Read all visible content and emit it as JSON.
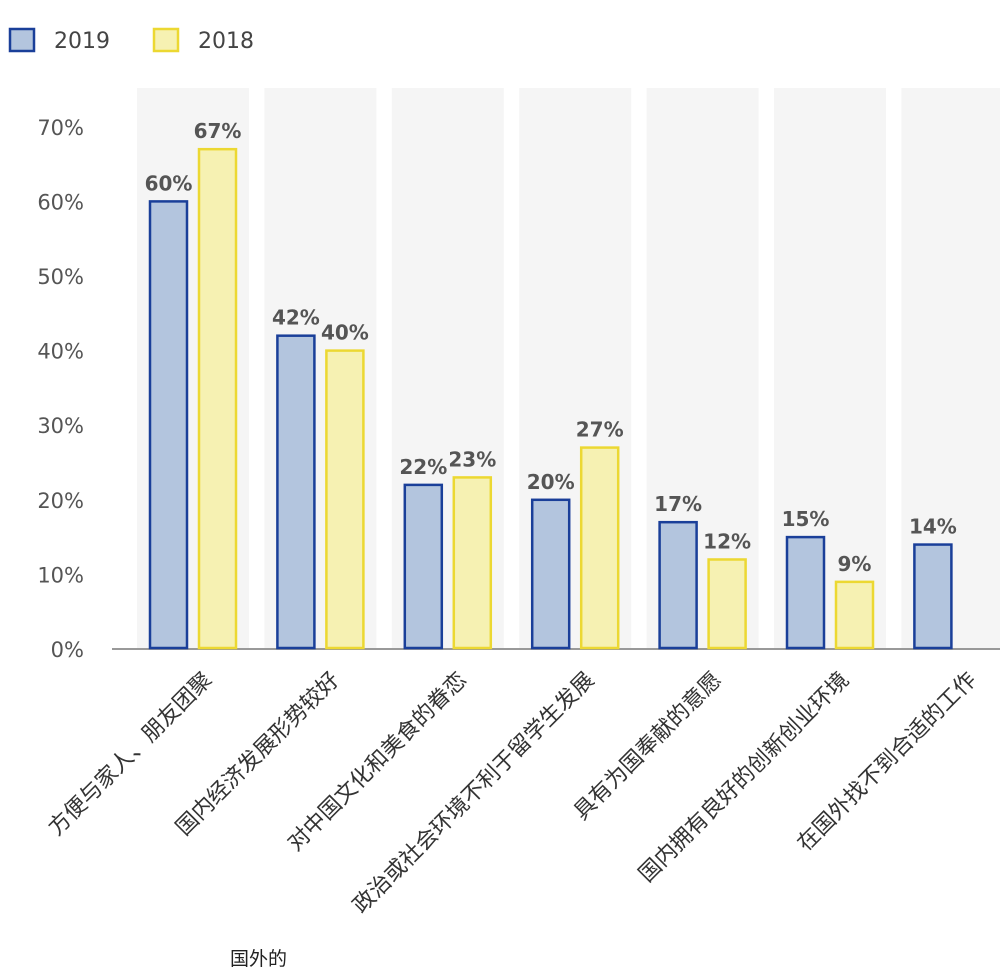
{
  "chart_data": {
    "type": "bar",
    "categories": [
      "方便与家人、朋友团聚",
      "国内经济发展形势较好",
      "对中国文化和美食的眷恋",
      "政治或社会环境不利于留学生发展",
      "具有为国奉献的意愿",
      "国内拥有良好的创新创业环境",
      "在国外找不到合适的工作"
    ],
    "series": [
      {
        "name": "2019",
        "values": [
          60,
          42,
          22,
          20,
          17,
          15,
          14
        ],
        "labels": [
          "60%",
          "42%",
          "22%",
          "20%",
          "17%",
          "15%",
          "14%"
        ]
      },
      {
        "name": "2018",
        "values": [
          67,
          40,
          23,
          27,
          12,
          9,
          null
        ],
        "labels": [
          "67%",
          "40%",
          "23%",
          "27%",
          "12%",
          "9%",
          ""
        ]
      }
    ],
    "ylim": [
      0,
      70
    ],
    "yticks": [
      0,
      10,
      20,
      30,
      40,
      50,
      60,
      70
    ],
    "ytick_labels": [
      "0%",
      "10%",
      "20%",
      "30%",
      "40%",
      "50%",
      "60%",
      "70%"
    ],
    "legend_position": "top-left",
    "grid": false,
    "colors": {
      "s2019_fill": "#b3c5de",
      "s2019_stroke": "#1a3f99",
      "s2018_fill": "#f6f1b2",
      "s2018_stroke": "#ecd832",
      "band": "#f5f5f5",
      "axis": "#999999"
    }
  },
  "stray_text": "国外的"
}
